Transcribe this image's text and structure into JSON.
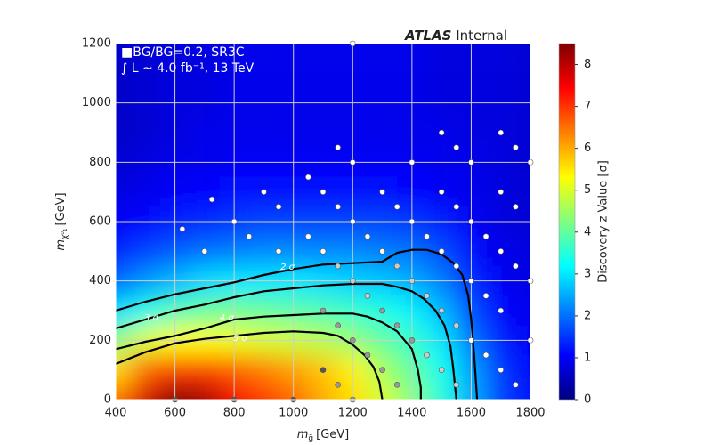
{
  "chart_data": {
    "type": "heatmap",
    "title_bold": "ATLAS",
    "title_rest": "Internal",
    "annotations": [
      "■BG/BG=0.2, SR3C",
      "∫ L ~ 4.0 fb⁻¹, 13 TeV"
    ],
    "xlabel": {
      "main": "m",
      "sub": "g̃",
      "unit": "[GeV]"
    },
    "ylabel": {
      "main": "m",
      "sub": "χ̃⁰₁",
      "unit": "[GeV]"
    },
    "colorbar_label": "Discovery z Value [σ]",
    "xlim": [
      400,
      1800
    ],
    "xticks": [
      400,
      600,
      800,
      1000,
      1200,
      1400,
      1600,
      1800
    ],
    "ylim": [
      0,
      1200
    ],
    "yticks": [
      0,
      200,
      400,
      600,
      800,
      1000,
      1200
    ],
    "zlim": [
      0,
      8.5
    ],
    "zticks": [
      0,
      1,
      2,
      3,
      4,
      5,
      6,
      7,
      8
    ],
    "grid": true,
    "colormap": [
      "#00007f",
      "#0000ff",
      "#007fff",
      "#00ffff",
      "#7fff7f",
      "#ffff00",
      "#ff7f00",
      "#ff0000",
      "#7f0000"
    ],
    "heatmap": {
      "x": [
        400,
        500,
        600,
        700,
        800,
        900,
        1000,
        1100,
        1200,
        1300,
        1400,
        1500,
        1600,
        1700,
        1800
      ],
      "y": [
        0,
        100,
        200,
        300,
        400,
        500,
        600,
        700,
        800,
        900,
        1000,
        1100,
        1200
      ],
      "z": [
        [
          6.5,
          7.8,
          8.5,
          8.2,
          7.5,
          7.0,
          6.6,
          6.0,
          5.6,
          5.0,
          4.3,
          3.5,
          2.5,
          1.6,
          1.2
        ],
        [
          5.6,
          6.6,
          7.0,
          7.0,
          6.7,
          6.4,
          6.1,
          5.8,
          5.4,
          4.6,
          4.0,
          3.3,
          2.4,
          1.5,
          1.1
        ],
        [
          4.3,
          5.0,
          5.3,
          5.3,
          5.2,
          5.0,
          4.9,
          4.7,
          4.4,
          4.0,
          3.6,
          3.0,
          2.0,
          1.3,
          1.0
        ],
        [
          2.9,
          3.4,
          3.8,
          4.0,
          4.1,
          4.0,
          3.9,
          3.8,
          3.6,
          3.4,
          3.1,
          2.6,
          1.7,
          1.1,
          0.9
        ],
        [
          1.9,
          2.3,
          2.6,
          2.9,
          3.0,
          3.0,
          3.0,
          2.9,
          2.8,
          2.7,
          2.5,
          2.1,
          1.4,
          1.0,
          0.8
        ],
        [
          1.3,
          1.6,
          1.8,
          2.0,
          2.1,
          2.2,
          2.2,
          2.2,
          2.2,
          2.1,
          2.0,
          1.7,
          1.2,
          0.9,
          0.8
        ],
        [
          1.0,
          1.1,
          1.3,
          1.4,
          1.5,
          1.6,
          1.6,
          1.6,
          1.6,
          1.6,
          1.5,
          1.3,
          1.0,
          0.8,
          0.7
        ],
        [
          0.8,
          0.9,
          1.0,
          1.1,
          1.2,
          1.2,
          1.2,
          1.2,
          1.2,
          1.2,
          1.1,
          1.0,
          0.9,
          0.8,
          0.7
        ],
        [
          0.7,
          0.8,
          0.9,
          0.9,
          1.0,
          1.0,
          1.0,
          1.0,
          1.0,
          1.0,
          1.0,
          0.9,
          0.9,
          0.8,
          0.7
        ],
        [
          0.6,
          0.7,
          0.8,
          0.9,
          0.9,
          0.9,
          0.9,
          0.9,
          0.9,
          0.9,
          0.9,
          0.9,
          0.8,
          0.8,
          0.7
        ],
        [
          0.6,
          0.7,
          0.8,
          0.8,
          0.9,
          0.9,
          0.9,
          0.9,
          0.9,
          0.9,
          0.9,
          0.8,
          0.8,
          0.8,
          0.7
        ],
        [
          0.6,
          0.7,
          0.8,
          0.8,
          0.9,
          0.9,
          0.9,
          0.9,
          0.9,
          0.9,
          0.9,
          0.8,
          0.8,
          0.8,
          0.7
        ],
        [
          0.6,
          0.7,
          0.8,
          0.8,
          0.9,
          0.9,
          0.9,
          0.9,
          0.9,
          0.9,
          0.9,
          0.8,
          0.8,
          0.8,
          0.7
        ]
      ]
    },
    "contours": [
      {
        "label": "2 σ",
        "label_x": 980,
        "label_y": 447,
        "x": [
          400,
          500,
          600,
          700,
          800,
          900,
          1000,
          1100,
          1200,
          1300,
          1350,
          1400,
          1450,
          1500,
          1540,
          1570,
          1590,
          1600,
          1610,
          1620
        ],
        "y": [
          300,
          330,
          355,
          375,
          395,
          420,
          440,
          455,
          460,
          465,
          495,
          505,
          505,
          490,
          460,
          420,
          350,
          270,
          150,
          0
        ]
      },
      {
        "label": "3 σ",
        "label_x": 520,
        "label_y": 276,
        "x": [
          400,
          500,
          600,
          700,
          800,
          900,
          1000,
          1100,
          1200,
          1300,
          1350,
          1400,
          1440,
          1480,
          1510,
          1530,
          1540,
          1550
        ],
        "y": [
          240,
          270,
          300,
          320,
          345,
          365,
          375,
          385,
          390,
          390,
          380,
          365,
          340,
          300,
          250,
          180,
          100,
          0
        ]
      },
      {
        "label": "4 σ",
        "label_x": 775,
        "label_y": 276,
        "x": [
          400,
          500,
          600,
          700,
          800,
          900,
          1000,
          1100,
          1200,
          1250,
          1300,
          1350,
          1400,
          1420,
          1430,
          1430
        ],
        "y": [
          170,
          195,
          215,
          240,
          270,
          280,
          285,
          290,
          290,
          280,
          260,
          230,
          170,
          100,
          40,
          0
        ]
      },
      {
        "label": "5 σ",
        "label_x": 820,
        "label_y": 207,
        "x": [
          400,
          450,
          500,
          600,
          700,
          800,
          900,
          1000,
          1100,
          1150,
          1200,
          1240,
          1270,
          1290,
          1300
        ],
        "y": [
          120,
          140,
          160,
          190,
          205,
          215,
          225,
          230,
          225,
          215,
          185,
          150,
          110,
          60,
          0
        ]
      }
    ],
    "points": {
      "x": [
        1200,
        1500,
        1700,
        1150,
        1550,
        1750,
        1200,
        1400,
        1600,
        1800,
        1050,
        900,
        1100,
        1300,
        1500,
        1700,
        725,
        950,
        1150,
        1350,
        1550,
        1750,
        800,
        1200,
        1400,
        1600,
        625,
        850,
        1050,
        1250,
        1450,
        1650,
        700,
        950,
        1100,
        1300,
        1500,
        1700,
        1150,
        1350,
        1550,
        1750,
        1200,
        1400,
        1600,
        1800,
        1250,
        1450,
        1650,
        1100,
        1300,
        1500,
        1700,
        1150,
        1350,
        1550,
        1200,
        1400,
        1600,
        1800,
        1250,
        1450,
        1650,
        1100,
        1300,
        1500,
        1700,
        1150,
        1350,
        1550,
        1750,
        600,
        800,
        1000,
        1200
      ],
      "y": [
        1200,
        900,
        900,
        850,
        850,
        850,
        800,
        800,
        800,
        800,
        750,
        700,
        700,
        700,
        700,
        700,
        675,
        650,
        650,
        650,
        650,
        650,
        600,
        600,
        600,
        600,
        575,
        550,
        550,
        550,
        550,
        550,
        500,
        500,
        500,
        500,
        500,
        500,
        450,
        450,
        450,
        450,
        400,
        400,
        400,
        400,
        350,
        350,
        350,
        300,
        300,
        300,
        300,
        250,
        250,
        250,
        200,
        200,
        200,
        200,
        150,
        150,
        150,
        100,
        100,
        100,
        100,
        50,
        50,
        50,
        50,
        0,
        0,
        0,
        0
      ],
      "colors": [
        "#ffffff",
        "#ffffff",
        "#ffffff",
        "#ffffff",
        "#ffffff",
        "#ffffff",
        "#ffffff",
        "#ffffff",
        "#ffffff",
        "#ffffff",
        "#ffffff",
        "#ffffff",
        "#ffffff",
        "#ffffff",
        "#ffffff",
        "#ffffff",
        "#ffffff",
        "#ffffff",
        "#ffffff",
        "#ffffff",
        "#ffffff",
        "#ffffff",
        "#ffffff",
        "#ffffff",
        "#ffffff",
        "#ffffff",
        "#ffffff",
        "#ffffff",
        "#ffffff",
        "#ffffff",
        "#ffffff",
        "#ffffff",
        "#ffffff",
        "#ffffff",
        "#ffffff",
        "#ffffff",
        "#ffffff",
        "#ffffff",
        "#cccccc",
        "#cccccc",
        "#ffffff",
        "#ffffff",
        "#cccccc",
        "#cccccc",
        "#ffffff",
        "#ffffff",
        "#cccccc",
        "#cccccc",
        "#ffffff",
        "#999999",
        "#999999",
        "#cccccc",
        "#ffffff",
        "#999999",
        "#999999",
        "#cccccc",
        "#999999",
        "#999999",
        "#ffffff",
        "#ffffff",
        "#999999",
        "#cccccc",
        "#ffffff",
        "#555555",
        "#999999",
        "#cccccc",
        "#ffffff",
        "#999999",
        "#999999",
        "#cccccc",
        "#ffffff",
        "#555555",
        "#555555",
        "#555555",
        "#999999"
      ]
    }
  }
}
